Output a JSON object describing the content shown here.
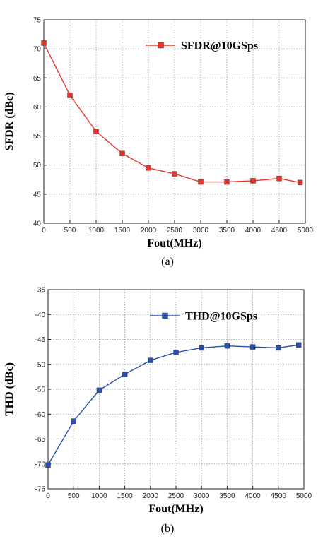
{
  "chart_data": [
    {
      "type": "line",
      "caption": "(a)",
      "xlabel": "Fout(MHz)",
      "ylabel": "SFDR (dBc)",
      "xlim": [
        0,
        5000
      ],
      "ylim": [
        40,
        75
      ],
      "xticks": [
        0,
        500,
        1000,
        1500,
        2000,
        2500,
        3000,
        3500,
        4000,
        4500,
        5000
      ],
      "yticks": [
        40,
        45,
        50,
        55,
        60,
        65,
        70,
        75
      ],
      "grid": true,
      "legend_position": "top-right",
      "series": [
        {
          "name": "SFDR@10GSps",
          "color": "#e8352b",
          "marker": "square",
          "x": [
            0,
            500,
            1000,
            1500,
            2000,
            2500,
            3000,
            3500,
            4000,
            4500,
            4900
          ],
          "y": [
            71.0,
            62.0,
            55.8,
            52.0,
            49.5,
            48.5,
            47.1,
            47.1,
            47.3,
            47.7,
            47.0
          ]
        }
      ]
    },
    {
      "type": "line",
      "caption": "(b)",
      "xlabel": "Fout(MHz)",
      "ylabel": "THD (dBc)",
      "xlim": [
        0,
        5000
      ],
      "ylim": [
        -75,
        -35
      ],
      "xticks": [
        0,
        500,
        1000,
        1500,
        2000,
        2500,
        3000,
        3500,
        4000,
        4500,
        5000
      ],
      "yticks": [
        -35,
        -40,
        -45,
        -50,
        -55,
        -60,
        -65,
        -70,
        -75
      ],
      "grid": true,
      "legend_position": "top-right",
      "series": [
        {
          "name": "THD@10GSps",
          "color": "#2850b0",
          "marker": "square",
          "x": [
            0,
            500,
            1000,
            1500,
            2000,
            2500,
            3000,
            3500,
            4000,
            4500,
            4900
          ],
          "y": [
            -70.2,
            -61.4,
            -55.2,
            -52.0,
            -49.2,
            -47.6,
            -46.7,
            -46.3,
            -46.5,
            -46.7,
            -46.1
          ]
        }
      ]
    }
  ]
}
